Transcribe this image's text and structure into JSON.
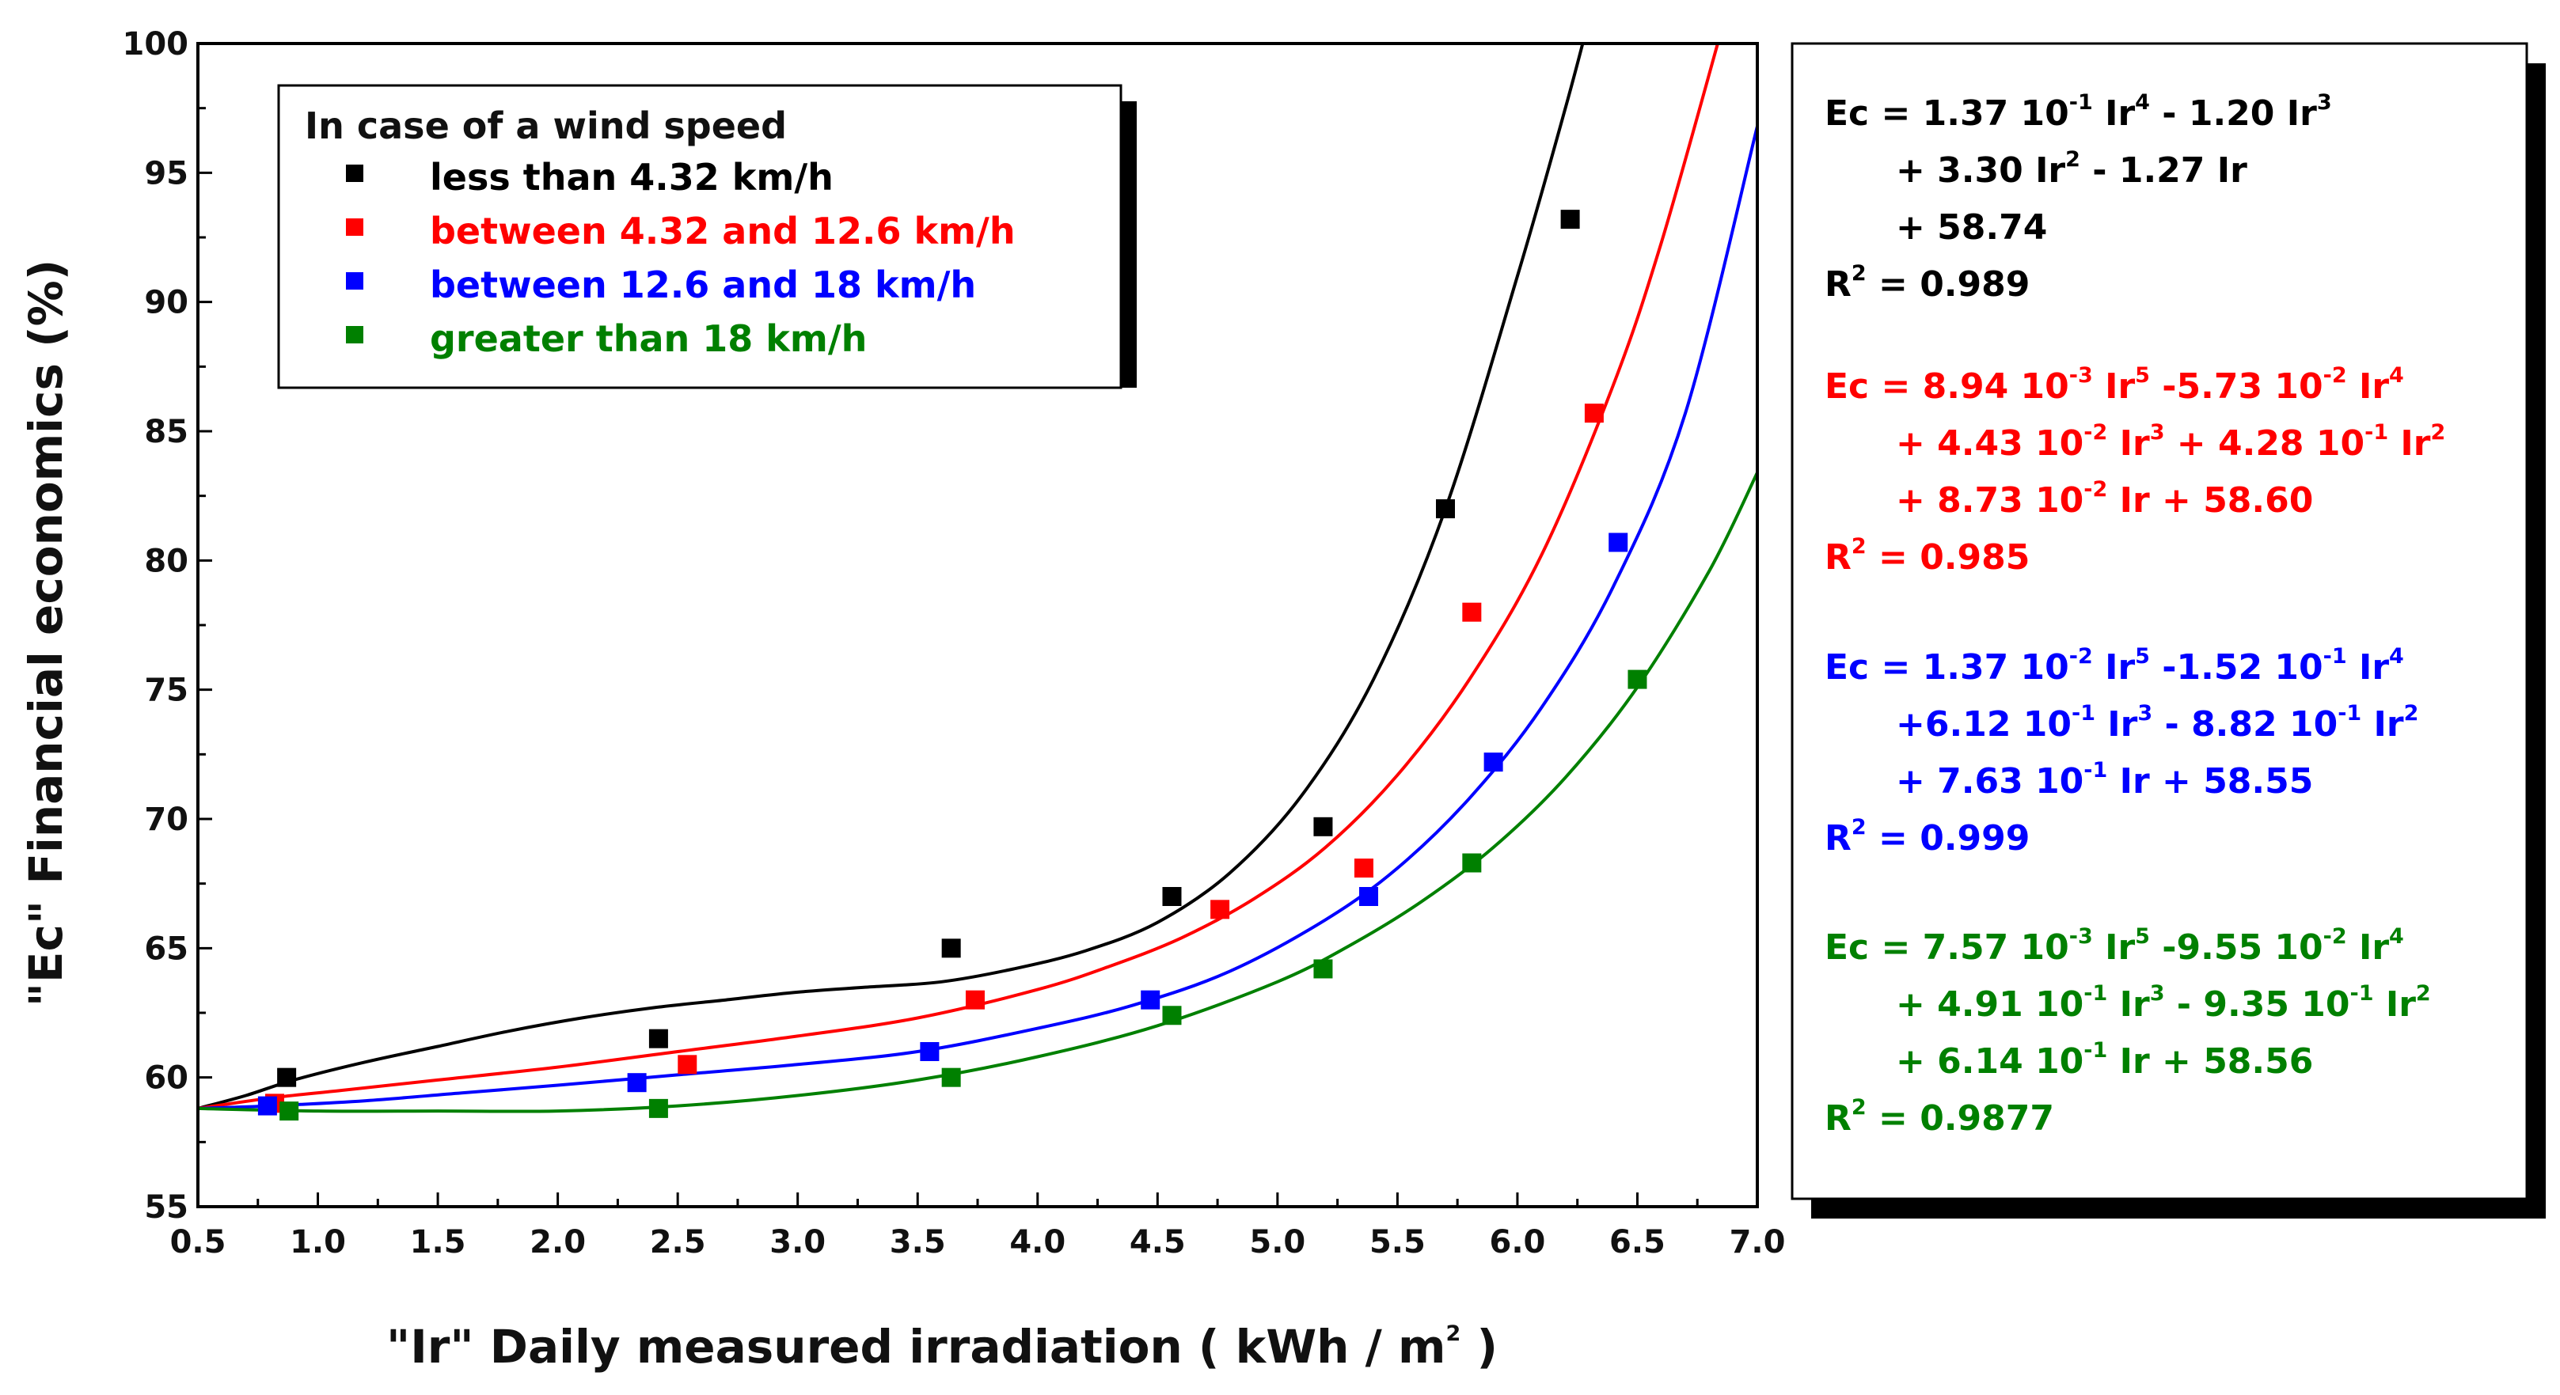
{
  "chart_data": {
    "type": "scatter",
    "title": "",
    "xlabel": "\"Ir\"  Daily measured irradiation ( kWh / m",
    "xlabel_sup": "2",
    "xlabel_close": " )",
    "ylabel": "\"Ec\"   Financial economics (%)",
    "xlim": [
      0.5,
      7.0
    ],
    "ylim": [
      55,
      100
    ],
    "x_ticks": [
      "0.5",
      "1.0",
      "1.5",
      "2.0",
      "2.5",
      "3.0",
      "3.5",
      "4.0",
      "4.5",
      "5.0",
      "5.5",
      "6.0",
      "6.5",
      "7.0"
    ],
    "y_ticks": [
      "55",
      "60",
      "65",
      "70",
      "75",
      "80",
      "85",
      "90",
      "95",
      "100"
    ],
    "legend": {
      "title": "In case of a wind speed",
      "position": "top-left"
    },
    "series": [
      {
        "name": "less than 4.32 km/h",
        "color": "#000000",
        "x": [
          0.87,
          2.42,
          3.64,
          4.56,
          5.19,
          5.7,
          6.22
        ],
        "y": [
          60.0,
          61.5,
          65.0,
          67.0,
          69.7,
          82.0,
          93.2
        ],
        "curve_x": [
          0.5,
          0.7,
          0.9,
          1.2,
          1.5,
          1.8,
          2.1,
          2.4,
          2.7,
          3.0,
          3.3,
          3.6,
          3.9,
          4.2,
          4.5,
          4.8,
          5.1,
          5.4,
          5.7,
          6.0,
          6.2,
          6.3
        ],
        "curve_y": [
          58.8,
          59.3,
          59.9,
          60.6,
          61.2,
          61.8,
          62.3,
          62.7,
          63.0,
          63.3,
          63.5,
          63.7,
          64.2,
          64.9,
          66.0,
          67.9,
          70.9,
          75.4,
          82.0,
          91.0,
          97.5,
          101.0
        ]
      },
      {
        "name": "between 4.32 and 12.6 km/h",
        "color": "#ff0000",
        "x": [
          0.82,
          2.54,
          3.74,
          4.76,
          5.36,
          5.81,
          6.32
        ],
        "y": [
          59.0,
          60.5,
          63.0,
          66.5,
          68.1,
          78.0,
          85.7
        ],
        "curve_x": [
          0.5,
          0.8,
          1.1,
          1.5,
          2.0,
          2.5,
          3.0,
          3.5,
          4.0,
          4.3,
          4.6,
          4.9,
          5.2,
          5.5,
          5.8,
          6.1,
          6.4,
          6.6,
          6.85
        ],
        "curve_y": [
          58.8,
          59.2,
          59.5,
          59.9,
          60.4,
          61.0,
          61.6,
          62.3,
          63.4,
          64.3,
          65.4,
          66.9,
          68.9,
          71.7,
          75.4,
          80.2,
          86.8,
          92.3,
          100.5
        ]
      },
      {
        "name": "between 12.6 and 18 km/h",
        "color": "#0000ff",
        "x": [
          0.79,
          2.33,
          3.55,
          4.47,
          5.38,
          5.9,
          6.42
        ],
        "y": [
          58.9,
          59.8,
          61.0,
          63.0,
          67.0,
          72.2,
          80.7
        ],
        "curve_x": [
          0.5,
          0.8,
          1.2,
          1.6,
          2.0,
          2.5,
          3.0,
          3.5,
          4.0,
          4.4,
          4.8,
          5.2,
          5.5,
          5.8,
          6.1,
          6.4,
          6.7,
          7.0
        ],
        "curve_y": [
          58.8,
          58.9,
          59.1,
          59.4,
          59.7,
          60.1,
          60.5,
          61.0,
          61.9,
          62.8,
          64.1,
          66.1,
          68.1,
          70.8,
          74.3,
          79.0,
          85.7,
          96.8
        ]
      },
      {
        "name": "greater than 18 km/h",
        "color": "#008000",
        "x": [
          0.88,
          2.42,
          3.64,
          4.56,
          5.19,
          5.81,
          6.5
        ],
        "y": [
          58.7,
          58.8,
          60.0,
          62.4,
          64.2,
          68.3,
          75.4
        ],
        "curve_x": [
          0.5,
          1.0,
          1.5,
          2.0,
          2.5,
          3.0,
          3.5,
          4.0,
          4.5,
          5.0,
          5.3,
          5.6,
          5.9,
          6.2,
          6.5,
          6.8,
          7.0
        ],
        "curve_y": [
          58.8,
          58.7,
          58.7,
          58.7,
          58.9,
          59.3,
          59.9,
          60.8,
          62.0,
          63.7,
          65.1,
          66.8,
          68.9,
          71.6,
          75.1,
          79.6,
          83.4
        ]
      }
    ]
  },
  "equations": [
    {
      "color": "#000000",
      "lines": [
        [
          [
            "Ec = 1.37 10",
            ""
          ],
          [
            "-1",
            "sup"
          ],
          [
            " Ir",
            ""
          ],
          [
            "4",
            "sup"
          ],
          [
            " - 1.20 Ir",
            ""
          ],
          [
            "3",
            "sup"
          ]
        ],
        [
          [
            "+ 3.30 Ir",
            ""
          ],
          [
            "2",
            "sup"
          ],
          [
            " - 1.27 Ir",
            ""
          ]
        ],
        [
          [
            "+ 58.74",
            ""
          ]
        ]
      ],
      "r2_label": "R",
      "r2_sup": "2",
      "r2_value": " = 0.989"
    },
    {
      "color": "#ff0000",
      "lines": [
        [
          [
            "Ec = 8.94 10",
            ""
          ],
          [
            "-3",
            "sup"
          ],
          [
            " Ir",
            ""
          ],
          [
            "5",
            "sup"
          ],
          [
            " -5.73 10",
            ""
          ],
          [
            "-2",
            "sup"
          ],
          [
            " Ir",
            ""
          ],
          [
            "4",
            "sup"
          ]
        ],
        [
          [
            "+ 4.43 10",
            ""
          ],
          [
            "-2",
            "sup"
          ],
          [
            " Ir",
            ""
          ],
          [
            "3",
            "sup"
          ],
          [
            " + 4.28 10",
            ""
          ],
          [
            "-1",
            "sup"
          ],
          [
            " Ir",
            ""
          ],
          [
            "2",
            "sup"
          ]
        ],
        [
          [
            "+ 8.73 10",
            ""
          ],
          [
            "-2",
            "sup"
          ],
          [
            " Ir + 58.60",
            ""
          ]
        ]
      ],
      "r2_label": "R",
      "r2_sup": "2",
      "r2_value": " = 0.985"
    },
    {
      "color": "#0000ff",
      "lines": [
        [
          [
            "Ec = 1.37 10",
            ""
          ],
          [
            "-2",
            "sup"
          ],
          [
            " Ir",
            ""
          ],
          [
            "5",
            "sup"
          ],
          [
            " -1.52 10",
            ""
          ],
          [
            "-1",
            "sup"
          ],
          [
            " Ir",
            ""
          ],
          [
            "4",
            "sup"
          ]
        ],
        [
          [
            "+6.12 10",
            ""
          ],
          [
            "-1",
            "sup"
          ],
          [
            " Ir",
            ""
          ],
          [
            "3",
            "sup"
          ],
          [
            " - 8.82 10",
            ""
          ],
          [
            "-1",
            "sup"
          ],
          [
            " Ir",
            ""
          ],
          [
            "2",
            "sup"
          ]
        ],
        [
          [
            "+ 7.63 10",
            ""
          ],
          [
            "-1",
            "sup"
          ],
          [
            " Ir + 58.55",
            ""
          ]
        ]
      ],
      "r2_label": "R",
      "r2_sup": "2",
      "r2_value": " = 0.999"
    },
    {
      "color": "#008000",
      "lines": [
        [
          [
            "Ec = 7.57 10",
            ""
          ],
          [
            "-3",
            "sup"
          ],
          [
            " Ir",
            ""
          ],
          [
            "5",
            "sup"
          ],
          [
            " -9.55 10",
            ""
          ],
          [
            "-2",
            "sup"
          ],
          [
            " Ir",
            ""
          ],
          [
            "4",
            "sup"
          ]
        ],
        [
          [
            "+ 4.91 10",
            ""
          ],
          [
            "-1",
            "sup"
          ],
          [
            " Ir",
            ""
          ],
          [
            "3",
            "sup"
          ],
          [
            " - 9.35 10",
            ""
          ],
          [
            "-1",
            "sup"
          ],
          [
            " Ir",
            ""
          ],
          [
            "2",
            "sup"
          ]
        ],
        [
          [
            "+ 6.14 10",
            ""
          ],
          [
            "-1",
            "sup"
          ],
          [
            " Ir + 58.56",
            ""
          ]
        ]
      ],
      "r2_label": "R",
      "r2_sup": "2",
      "r2_value": " = 0.9877"
    }
  ]
}
